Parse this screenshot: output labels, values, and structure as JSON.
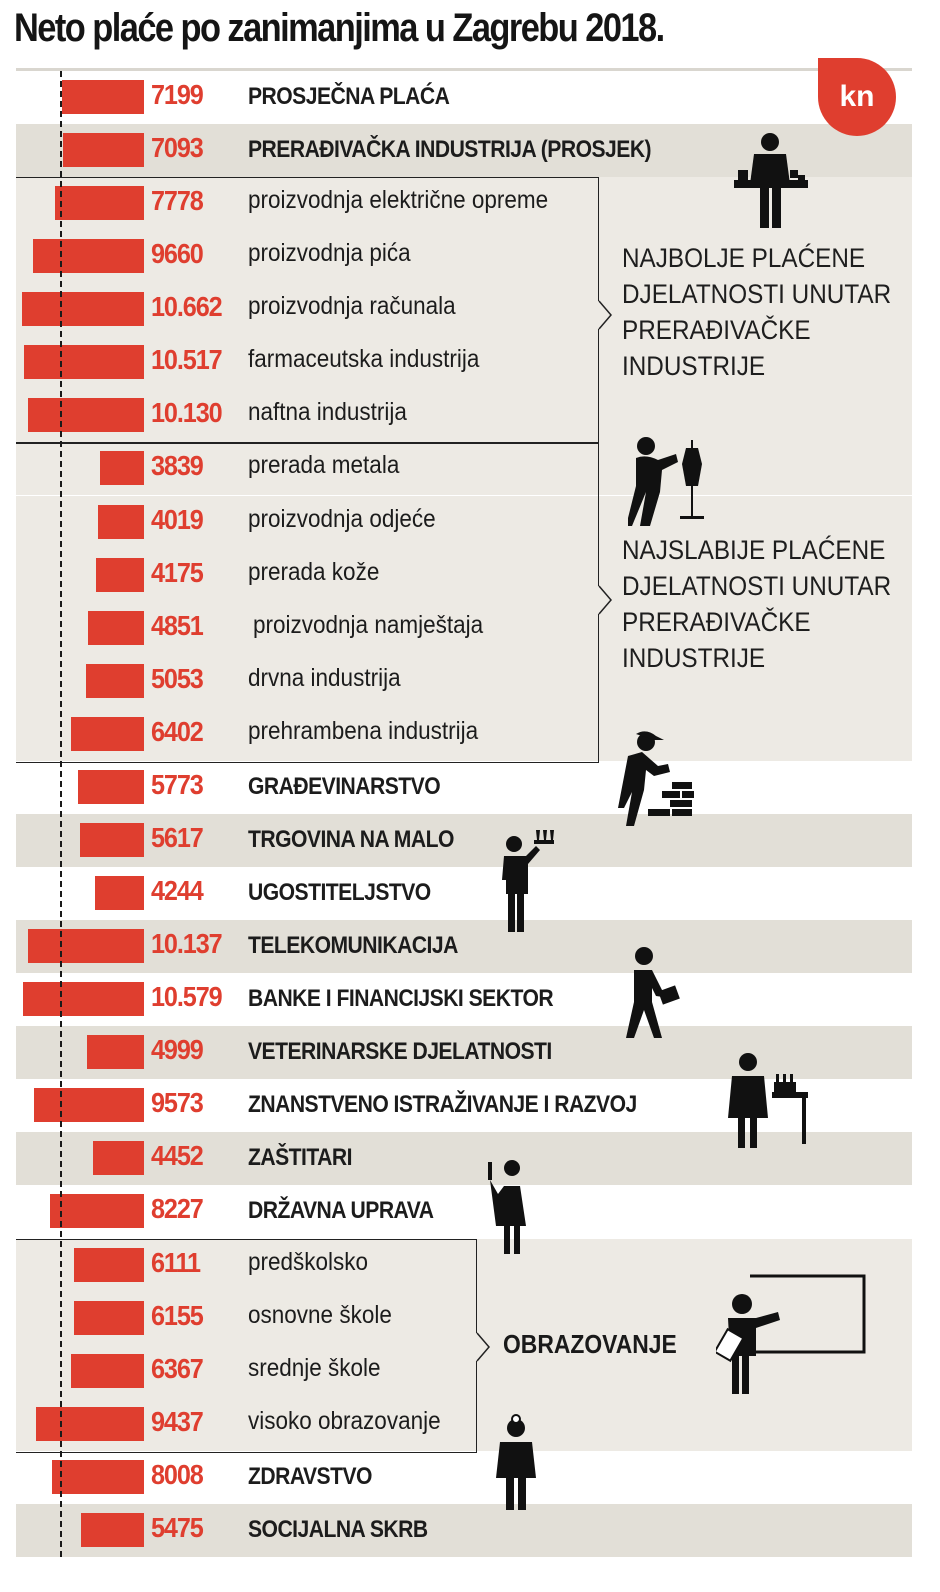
{
  "title": "Neto plaće po zanimanjima u Zagrebu 2018.",
  "unit_badge": "kn",
  "groups": {
    "best_paid": "NAJBOLJE PLAĆENE\nDJELATNOSTI UNUTAR\nPRERAĐIVAČKE\nINDUSTRIJE",
    "best_paid_lines": [
      "NAJBOLJE PLAĆENE",
      "DJELATNOSTI UNUTAR",
      "PRERAĐIVAČKE",
      "INDUSTRIJE"
    ],
    "worst_paid_lines": [
      "NAJSLABIJE PLAĆENE",
      "DJELATNOSTI UNUTAR",
      "PRERAĐIVAČKE",
      "INDUSTRIJE"
    ],
    "education": "OBRAZOVANJE"
  },
  "rows": [
    {
      "value": "7199",
      "label": "PROSJEČNA PLAĆA"
    },
    {
      "value": "7093",
      "label": "PRERAĐIVAČKA INDUSTRIJA (PROSJEK)"
    },
    {
      "value": "7778",
      "label": "proizvodnja električne opreme"
    },
    {
      "value": "9660",
      "label": "proizvodnja pića"
    },
    {
      "value": "10.662",
      "label": "proizvodnja računala"
    },
    {
      "value": "10.517",
      "label": "farmaceutska industrija"
    },
    {
      "value": "10.130",
      "label": "naftna industrija"
    },
    {
      "value": "3839",
      "label": "prerada metala"
    },
    {
      "value": "4019",
      "label": "proizvodnja odjeće"
    },
    {
      "value": "4175",
      "label": "prerada kože"
    },
    {
      "value": "4851",
      "label": "proizvodnja namještaja"
    },
    {
      "value": "5053",
      "label": "drvna industrija"
    },
    {
      "value": "6402",
      "label": "prehrambena industrija"
    },
    {
      "value": "5773",
      "label": "GRAĐEVINARSTVO"
    },
    {
      "value": "5617",
      "label": "TRGOVINA NA MALO"
    },
    {
      "value": "4244",
      "label": "UGOSTITELJSTVO"
    },
    {
      "value": "10.137",
      "label": "TELEKOMUNIKACIJA"
    },
    {
      "value": "10.579",
      "label": "BANKE I FINANCIJSKI SEKTOR"
    },
    {
      "value": "4999",
      "label": "VETERINARSKE DJELATNOSTI"
    },
    {
      "value": "9573",
      "label": "ZNANSTVENO ISTRAŽIVANJE I RAZVOJ"
    },
    {
      "value": "4452",
      "label": "ZAŠTITARI"
    },
    {
      "value": "8227",
      "label": "DRŽAVNA UPRAVA"
    },
    {
      "value": "6111",
      "label": "predškolsko"
    },
    {
      "value": "6155",
      "label": "osnovne škole"
    },
    {
      "value": "6367",
      "label": "srednje škole"
    },
    {
      "value": "9437",
      "label": "visoko obrazovanje"
    },
    {
      "value": "8008",
      "label": "ZDRAVSTVO"
    },
    {
      "value": "5475",
      "label": "SOCIJALNA SKRB"
    }
  ],
  "colors": {
    "bar": "#df3e2f",
    "row_alt": "#e2dfd7",
    "panel": "#edeae4"
  },
  "chart_data": {
    "type": "bar",
    "orientation": "horizontal",
    "title": "Neto plaće po zanimanjima u Zagrebu 2018.",
    "unit": "kn",
    "reference_line": {
      "label": "PROSJEČNA PLAĆA",
      "value": 7199,
      "style": "dashed"
    },
    "categories": [
      "PROSJEČNA PLAĆA",
      "PRERAĐIVAČKA INDUSTRIJA (PROSJEK)",
      "proizvodnja električne opreme",
      "proizvodnja pića",
      "proizvodnja računala",
      "farmaceutska industrija",
      "naftna industrija",
      "prerada metala",
      "proizvodnja odjeće",
      "prerada kože",
      "proizvodnja namještaja",
      "drvna industrija",
      "prehrambena industrija",
      "GRAĐEVINARSTVO",
      "TRGOVINA NA MALO",
      "UGOSTITELJSTVO",
      "TELEKOMUNIKACIJA",
      "BANKE I FINANCIJSKI SEKTOR",
      "VETERINARSKE DJELATNOSTI",
      "ZNANSTVENO ISTRAŽIVANJE I RAZVOJ",
      "ZAŠTITARI",
      "DRŽAVNA UPRAVA",
      "predškolsko",
      "osnovne škole",
      "srednje škole",
      "visoko obrazovanje",
      "ZDRAVSTVO",
      "SOCIJALNA SKRB"
    ],
    "values": [
      7199,
      7093,
      7778,
      9660,
      10662,
      10517,
      10130,
      3839,
      4019,
      4175,
      4851,
      5053,
      6402,
      5773,
      5617,
      4244,
      10137,
      10579,
      4999,
      9573,
      4452,
      8227,
      6111,
      6155,
      6367,
      9437,
      8008,
      5475
    ],
    "groups": [
      {
        "name": "NAJBOLJE PLAĆENE DJELATNOSTI UNUTAR PRERAĐIVAČKE INDUSTRIJE",
        "members": [
          "proizvodnja električne opreme",
          "proizvodnja pića",
          "proizvodnja računala",
          "farmaceutska industrija",
          "naftna industrija"
        ]
      },
      {
        "name": "NAJSLABIJE PLAĆENE DJELATNOSTI UNUTAR PRERAĐIVAČKE INDUSTRIJE",
        "members": [
          "prerada metala",
          "proizvodnja odjeće",
          "prerada kože",
          "proizvodnja namještaja",
          "drvna industrija",
          "prehrambena industrija"
        ]
      },
      {
        "name": "OBRAZOVANJE",
        "members": [
          "predškolsko",
          "osnovne škole",
          "srednje škole",
          "visoko obrazovanje"
        ]
      }
    ],
    "xlabel": "",
    "ylabel": "",
    "grid": false,
    "legend": "none"
  }
}
